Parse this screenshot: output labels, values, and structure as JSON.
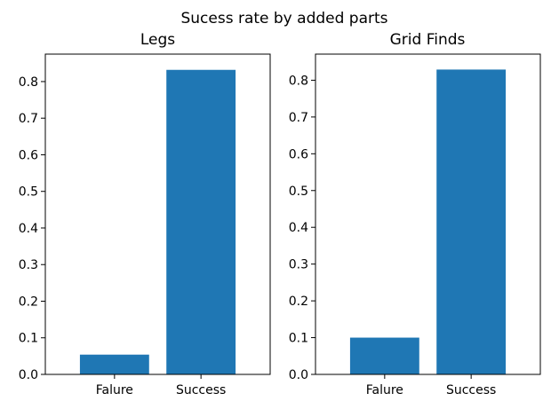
{
  "figure": {
    "suptitle": "Sucess rate by added parts"
  },
  "chart_data": [
    {
      "type": "bar",
      "title": "Legs",
      "xlabel": "",
      "ylabel": "",
      "categories": [
        "Falure",
        "Success"
      ],
      "values": [
        0.054,
        0.832
      ],
      "ylim": [
        0,
        0.875
      ],
      "yticks": [
        0.0,
        0.1,
        0.2,
        0.3,
        0.4,
        0.5,
        0.6,
        0.7,
        0.8
      ],
      "ytick_labels": [
        "0.0",
        "0.1",
        "0.2",
        "0.3",
        "0.4",
        "0.5",
        "0.6",
        "0.7",
        "0.8"
      ],
      "bar_color": "#1f77b4",
      "grid": false
    },
    {
      "type": "bar",
      "title": "Grid Finds",
      "xlabel": "",
      "ylabel": "",
      "categories": [
        "Falure",
        "Success"
      ],
      "values": [
        0.1,
        0.829
      ],
      "ylim": [
        0,
        0.871
      ],
      "yticks": [
        0.0,
        0.1,
        0.2,
        0.3,
        0.4,
        0.5,
        0.6,
        0.7,
        0.8
      ],
      "ytick_labels": [
        "0.0",
        "0.1",
        "0.2",
        "0.3",
        "0.4",
        "0.5",
        "0.6",
        "0.7",
        "0.8"
      ],
      "bar_color": "#1f77b4",
      "grid": false
    }
  ]
}
